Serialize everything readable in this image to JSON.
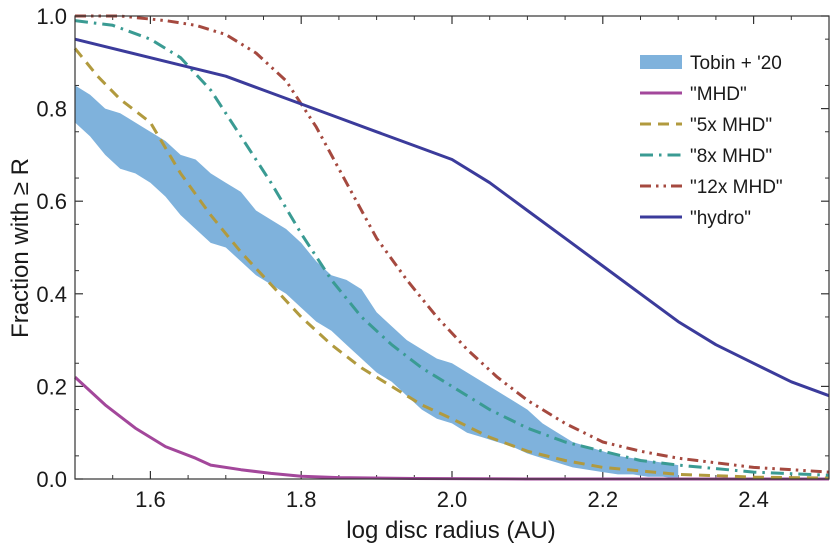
{
  "chart_data": {
    "type": "line",
    "title": "",
    "xlabel": "log disc radius (AU)",
    "ylabel": "Fraction with ≥ R",
    "xlim": [
      1.5,
      2.5
    ],
    "ylim": [
      0.0,
      1.0
    ],
    "xticks": [
      1.6,
      1.8,
      2.0,
      2.2,
      2.4
    ],
    "xtick_labels": [
      "1.6",
      "1.8",
      "2.0",
      "2.2",
      "2.4"
    ],
    "yticks": [
      0.0,
      0.2,
      0.4,
      0.6,
      0.8,
      1.0
    ],
    "ytick_labels": [
      "0.0",
      "0.2",
      "0.4",
      "0.6",
      "0.8",
      "1.0"
    ],
    "grid": false,
    "legend_position": "top-right",
    "band": {
      "name": "Tobin + '20",
      "color": "#7fb2dc",
      "upper": [
        [
          1.5,
          0.85
        ],
        [
          1.52,
          0.83
        ],
        [
          1.54,
          0.8
        ],
        [
          1.56,
          0.79
        ],
        [
          1.58,
          0.77
        ],
        [
          1.6,
          0.75
        ],
        [
          1.62,
          0.73
        ],
        [
          1.64,
          0.7
        ],
        [
          1.66,
          0.69
        ],
        [
          1.68,
          0.66
        ],
        [
          1.7,
          0.64
        ],
        [
          1.72,
          0.62
        ],
        [
          1.74,
          0.58
        ],
        [
          1.76,
          0.56
        ],
        [
          1.78,
          0.54
        ],
        [
          1.8,
          0.51
        ],
        [
          1.82,
          0.47
        ],
        [
          1.84,
          0.44
        ],
        [
          1.86,
          0.43
        ],
        [
          1.88,
          0.41
        ],
        [
          1.9,
          0.36
        ],
        [
          1.92,
          0.33
        ],
        [
          1.94,
          0.3
        ],
        [
          1.96,
          0.28
        ],
        [
          1.98,
          0.26
        ],
        [
          2.0,
          0.25
        ],
        [
          2.02,
          0.23
        ],
        [
          2.04,
          0.21
        ],
        [
          2.06,
          0.19
        ],
        [
          2.08,
          0.17
        ],
        [
          2.1,
          0.15
        ],
        [
          2.12,
          0.12
        ],
        [
          2.14,
          0.1
        ],
        [
          2.16,
          0.08
        ],
        [
          2.18,
          0.07
        ],
        [
          2.2,
          0.06
        ],
        [
          2.22,
          0.05
        ],
        [
          2.24,
          0.045
        ],
        [
          2.26,
          0.04
        ],
        [
          2.28,
          0.035
        ],
        [
          2.3,
          0.03
        ]
      ],
      "lower": [
        [
          1.5,
          0.77
        ],
        [
          1.52,
          0.74
        ],
        [
          1.54,
          0.7
        ],
        [
          1.56,
          0.67
        ],
        [
          1.58,
          0.66
        ],
        [
          1.6,
          0.64
        ],
        [
          1.62,
          0.61
        ],
        [
          1.64,
          0.57
        ],
        [
          1.66,
          0.54
        ],
        [
          1.68,
          0.51
        ],
        [
          1.7,
          0.5
        ],
        [
          1.72,
          0.47
        ],
        [
          1.74,
          0.44
        ],
        [
          1.76,
          0.42
        ],
        [
          1.78,
          0.4
        ],
        [
          1.8,
          0.37
        ],
        [
          1.82,
          0.34
        ],
        [
          1.84,
          0.32
        ],
        [
          1.86,
          0.29
        ],
        [
          1.88,
          0.26
        ],
        [
          1.9,
          0.23
        ],
        [
          1.92,
          0.21
        ],
        [
          1.94,
          0.18
        ],
        [
          1.96,
          0.15
        ],
        [
          1.98,
          0.13
        ],
        [
          2.0,
          0.12
        ],
        [
          2.02,
          0.1
        ],
        [
          2.04,
          0.09
        ],
        [
          2.06,
          0.08
        ],
        [
          2.08,
          0.07
        ],
        [
          2.1,
          0.055
        ],
        [
          2.12,
          0.045
        ],
        [
          2.14,
          0.035
        ],
        [
          2.16,
          0.025
        ],
        [
          2.18,
          0.02
        ],
        [
          2.2,
          0.015
        ],
        [
          2.22,
          0.01
        ],
        [
          2.24,
          0.01
        ],
        [
          2.26,
          0.005
        ],
        [
          2.28,
          0.005
        ],
        [
          2.3,
          0.0
        ]
      ]
    },
    "series": [
      {
        "name": "\"MHD\"",
        "color": "#a3479b",
        "dash": "solid",
        "points": [
          [
            1.5,
            0.22
          ],
          [
            1.54,
            0.16
          ],
          [
            1.58,
            0.11
          ],
          [
            1.62,
            0.07
          ],
          [
            1.66,
            0.045
          ],
          [
            1.68,
            0.03
          ],
          [
            1.72,
            0.02
          ],
          [
            1.76,
            0.012
          ],
          [
            1.8,
            0.006
          ],
          [
            1.85,
            0.003
          ],
          [
            1.95,
            0.001
          ],
          [
            2.1,
            0.0
          ],
          [
            2.5,
            0.0
          ]
        ]
      },
      {
        "name": "\"5x MHD\"",
        "color": "#b19a3e",
        "dash": "dash",
        "points": [
          [
            1.5,
            0.93
          ],
          [
            1.53,
            0.87
          ],
          [
            1.56,
            0.82
          ],
          [
            1.6,
            0.77
          ],
          [
            1.64,
            0.66
          ],
          [
            1.68,
            0.57
          ],
          [
            1.72,
            0.49
          ],
          [
            1.76,
            0.42
          ],
          [
            1.8,
            0.35
          ],
          [
            1.84,
            0.29
          ],
          [
            1.88,
            0.24
          ],
          [
            1.92,
            0.2
          ],
          [
            1.96,
            0.16
          ],
          [
            2.0,
            0.13
          ],
          [
            2.05,
            0.09
          ],
          [
            2.1,
            0.06
          ],
          [
            2.15,
            0.04
          ],
          [
            2.2,
            0.025
          ],
          [
            2.3,
            0.01
          ],
          [
            2.4,
            0.004
          ],
          [
            2.5,
            0.002
          ]
        ]
      },
      {
        "name": "\"8x MHD\"",
        "color": "#3a9b93",
        "dash": "dashdot",
        "points": [
          [
            1.5,
            0.99
          ],
          [
            1.55,
            0.98
          ],
          [
            1.6,
            0.95
          ],
          [
            1.64,
            0.91
          ],
          [
            1.68,
            0.84
          ],
          [
            1.72,
            0.74
          ],
          [
            1.76,
            0.64
          ],
          [
            1.8,
            0.53
          ],
          [
            1.84,
            0.43
          ],
          [
            1.88,
            0.35
          ],
          [
            1.92,
            0.29
          ],
          [
            1.96,
            0.24
          ],
          [
            2.0,
            0.2
          ],
          [
            2.05,
            0.15
          ],
          [
            2.1,
            0.11
          ],
          [
            2.15,
            0.08
          ],
          [
            2.2,
            0.06
          ],
          [
            2.25,
            0.04
          ],
          [
            2.3,
            0.03
          ],
          [
            2.4,
            0.015
          ],
          [
            2.5,
            0.008
          ]
        ]
      },
      {
        "name": "\"12x MHD\"",
        "color": "#a5493f",
        "dash": "dashdotdot",
        "points": [
          [
            1.5,
            1.0
          ],
          [
            1.56,
            1.0
          ],
          [
            1.62,
            0.99
          ],
          [
            1.66,
            0.98
          ],
          [
            1.7,
            0.96
          ],
          [
            1.74,
            0.92
          ],
          [
            1.78,
            0.86
          ],
          [
            1.82,
            0.76
          ],
          [
            1.86,
            0.64
          ],
          [
            1.9,
            0.52
          ],
          [
            1.94,
            0.43
          ],
          [
            1.98,
            0.35
          ],
          [
            2.02,
            0.28
          ],
          [
            2.06,
            0.22
          ],
          [
            2.1,
            0.17
          ],
          [
            2.15,
            0.12
          ],
          [
            2.2,
            0.08
          ],
          [
            2.25,
            0.06
          ],
          [
            2.3,
            0.045
          ],
          [
            2.35,
            0.035
          ],
          [
            2.4,
            0.025
          ],
          [
            2.45,
            0.02
          ],
          [
            2.5,
            0.015
          ]
        ]
      },
      {
        "name": "\"hydro\"",
        "color": "#3b3b9b",
        "dash": "solid",
        "points": [
          [
            1.5,
            0.95
          ],
          [
            1.55,
            0.93
          ],
          [
            1.6,
            0.91
          ],
          [
            1.65,
            0.89
          ],
          [
            1.7,
            0.87
          ],
          [
            1.75,
            0.84
          ],
          [
            1.8,
            0.81
          ],
          [
            1.85,
            0.78
          ],
          [
            1.9,
            0.75
          ],
          [
            1.95,
            0.72
          ],
          [
            2.0,
            0.69
          ],
          [
            2.05,
            0.64
          ],
          [
            2.1,
            0.58
          ],
          [
            2.15,
            0.52
          ],
          [
            2.2,
            0.46
          ],
          [
            2.25,
            0.4
          ],
          [
            2.3,
            0.34
          ],
          [
            2.35,
            0.29
          ],
          [
            2.4,
            0.25
          ],
          [
            2.45,
            0.21
          ],
          [
            2.5,
            0.18
          ]
        ]
      }
    ],
    "legend": [
      {
        "label": "Tobin + '20",
        "color": "#7fb2dc",
        "style": "band"
      },
      {
        "label": "\"MHD\"",
        "color": "#a3479b",
        "style": "solid"
      },
      {
        "label": "\"5x MHD\"",
        "color": "#b19a3e",
        "style": "dash"
      },
      {
        "label": "\"8x MHD\"",
        "color": "#3a9b93",
        "style": "dashdot"
      },
      {
        "label": "\"12x MHD\"",
        "color": "#a5493f",
        "style": "dashdotdot"
      },
      {
        "label": "\"hydro\"",
        "color": "#3b3b9b",
        "style": "solid"
      }
    ]
  }
}
